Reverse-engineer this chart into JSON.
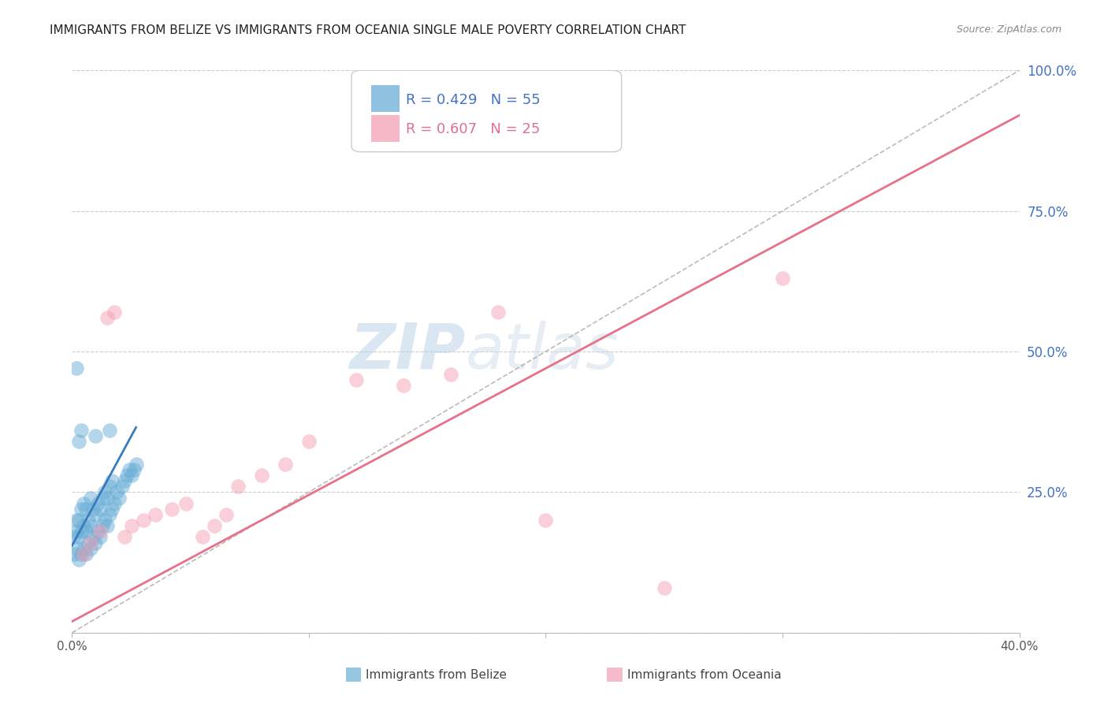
{
  "title": "IMMIGRANTS FROM BELIZE VS IMMIGRANTS FROM OCEANIA SINGLE MALE POVERTY CORRELATION CHART",
  "source": "Source: ZipAtlas.com",
  "ylabel": "Single Male Poverty",
  "legend_label_blue": "Immigrants from Belize",
  "legend_label_pink": "Immigrants from Oceania",
  "R_blue": 0.429,
  "N_blue": 55,
  "R_pink": 0.607,
  "N_pink": 25,
  "xlim": [
    0.0,
    0.4
  ],
  "ylim": [
    0.0,
    1.0
  ],
  "color_blue": "#6aaed6",
  "color_pink": "#f4a0b5",
  "color_blue_line": "#3a7abf",
  "color_pink_line": "#e8718a",
  "color_blue_text": "#4472c4",
  "color_pink_text": "#e07090",
  "watermark_zip": "ZIP",
  "watermark_atlas": "atlas",
  "grid_color": "#cccccc",
  "blue_scatter_x": [
    0.001,
    0.001,
    0.002,
    0.002,
    0.002,
    0.003,
    0.003,
    0.003,
    0.004,
    0.004,
    0.004,
    0.005,
    0.005,
    0.005,
    0.006,
    0.006,
    0.006,
    0.007,
    0.007,
    0.008,
    0.008,
    0.008,
    0.009,
    0.009,
    0.01,
    0.01,
    0.011,
    0.011,
    0.012,
    0.012,
    0.013,
    0.013,
    0.014,
    0.014,
    0.015,
    0.015,
    0.016,
    0.016,
    0.017,
    0.017,
    0.018,
    0.019,
    0.02,
    0.021,
    0.022,
    0.023,
    0.024,
    0.025,
    0.026,
    0.027,
    0.002,
    0.003,
    0.004,
    0.01,
    0.016
  ],
  "blue_scatter_y": [
    0.14,
    0.17,
    0.15,
    0.18,
    0.2,
    0.13,
    0.17,
    0.2,
    0.14,
    0.18,
    0.22,
    0.15,
    0.19,
    0.23,
    0.14,
    0.18,
    0.22,
    0.16,
    0.2,
    0.15,
    0.19,
    0.24,
    0.17,
    0.22,
    0.16,
    0.21,
    0.18,
    0.23,
    0.17,
    0.22,
    0.19,
    0.24,
    0.2,
    0.25,
    0.19,
    0.24,
    0.21,
    0.26,
    0.22,
    0.27,
    0.23,
    0.25,
    0.24,
    0.26,
    0.27,
    0.28,
    0.29,
    0.28,
    0.29,
    0.3,
    0.47,
    0.34,
    0.36,
    0.35,
    0.36
  ],
  "pink_scatter_x": [
    0.005,
    0.008,
    0.012,
    0.015,
    0.018,
    0.022,
    0.025,
    0.03,
    0.035,
    0.042,
    0.048,
    0.055,
    0.06,
    0.065,
    0.07,
    0.08,
    0.09,
    0.1,
    0.12,
    0.14,
    0.16,
    0.18,
    0.2,
    0.25,
    0.3
  ],
  "pink_scatter_y": [
    0.14,
    0.16,
    0.18,
    0.56,
    0.57,
    0.17,
    0.19,
    0.2,
    0.21,
    0.22,
    0.23,
    0.17,
    0.19,
    0.21,
    0.26,
    0.28,
    0.3,
    0.34,
    0.45,
    0.44,
    0.46,
    0.57,
    0.2,
    0.08,
    0.63
  ],
  "blue_trendline_x": [
    0.0,
    0.027
  ],
  "blue_trendline_y": [
    0.155,
    0.365
  ],
  "pink_trendline_x": [
    0.0,
    0.4
  ],
  "pink_trendline_y": [
    0.02,
    0.92
  ],
  "diag_line_x": [
    0.0,
    0.4
  ],
  "diag_line_y": [
    0.0,
    1.0
  ]
}
